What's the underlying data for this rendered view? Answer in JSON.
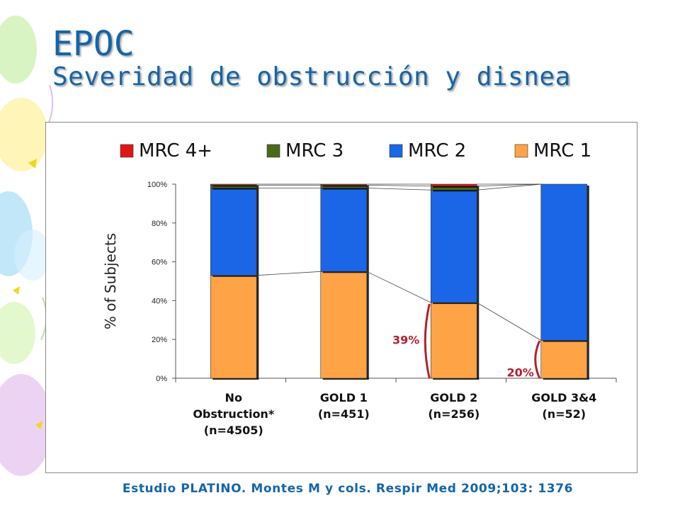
{
  "slide": {
    "title": "EPOC",
    "subtitle": "Severidad de obstrucción y disnea",
    "footer": "Estudio PLATINO. Montes M y cols. Respir Med 2009;103: 1376"
  },
  "chart_data": {
    "type": "bar",
    "stacked": true,
    "ylabel": "% of Subjects",
    "ylim": [
      0,
      100
    ],
    "yticks": [
      "0%",
      "20%",
      "40%",
      "60%",
      "80%",
      "100%"
    ],
    "legend_position": "top",
    "categories": [
      [
        "No",
        "Obstruction*",
        "(n=4505)"
      ],
      [
        "GOLD  1",
        "(n=451)"
      ],
      [
        "GOLD  2",
        "(n=256)"
      ],
      [
        "GOLD 3&4",
        "(n=52)"
      ]
    ],
    "series": [
      {
        "name": "MRC 1",
        "color": "#ffa347",
        "values": [
          53,
          55,
          39,
          19.5
        ]
      },
      {
        "name": "MRC 2",
        "color": "#1a66e6",
        "values": [
          45,
          43,
          58,
          80.5
        ]
      },
      {
        "name": "MRC 3",
        "color": "#4a6a1a",
        "values": [
          1.5,
          1.5,
          2,
          0
        ]
      },
      {
        "name": "MRC 4+",
        "color": "#e01616",
        "values": [
          0.5,
          0.5,
          1,
          0
        ]
      }
    ],
    "legend_order": [
      "MRC 4+",
      "MRC 3",
      "MRC 2",
      "MRC 1"
    ],
    "annotations": [
      {
        "text": "39%",
        "category": 2,
        "range": [
          0,
          39
        ],
        "color": "#b22030"
      },
      {
        "text": "20%",
        "category": 3,
        "range": [
          0,
          20
        ],
        "color": "#b22030"
      }
    ]
  }
}
